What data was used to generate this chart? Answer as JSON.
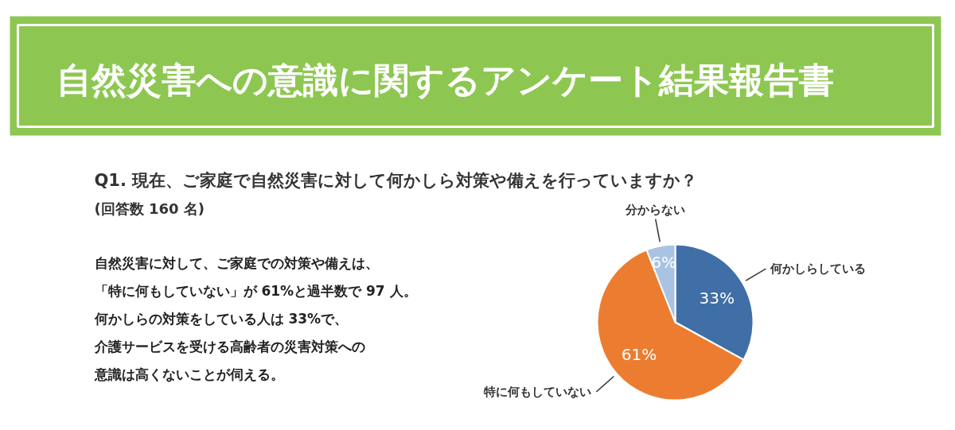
{
  "chart_data": {
    "type": "pie",
    "title": "自然災害への意識に関するアンケート結果報告書",
    "subtitle": "Q1. 現在、ご家庭で自然災害に対して何かしら対策や備えを行っていますか？",
    "annotations": [
      "(回答数 160 名)",
      "自然災害に対して、ご家庭での対策や備えは、",
      "「特に何もしていない」が 61%と過半数で 97 人。",
      "何かしらの対策をしている人は 33%で、",
      "介護サービスを受ける高齢者の災害対策への",
      "意識は高くないことが伺える。"
    ],
    "categories": [
      "何かしらしている",
      "特に何もしていない",
      "分からない"
    ],
    "values": [
      33,
      61,
      6
    ],
    "colors": [
      "#3f6fa6",
      "#ec7d30",
      "#a9c3e3"
    ],
    "value_labels": [
      "33%",
      "61%",
      "6%"
    ]
  }
}
